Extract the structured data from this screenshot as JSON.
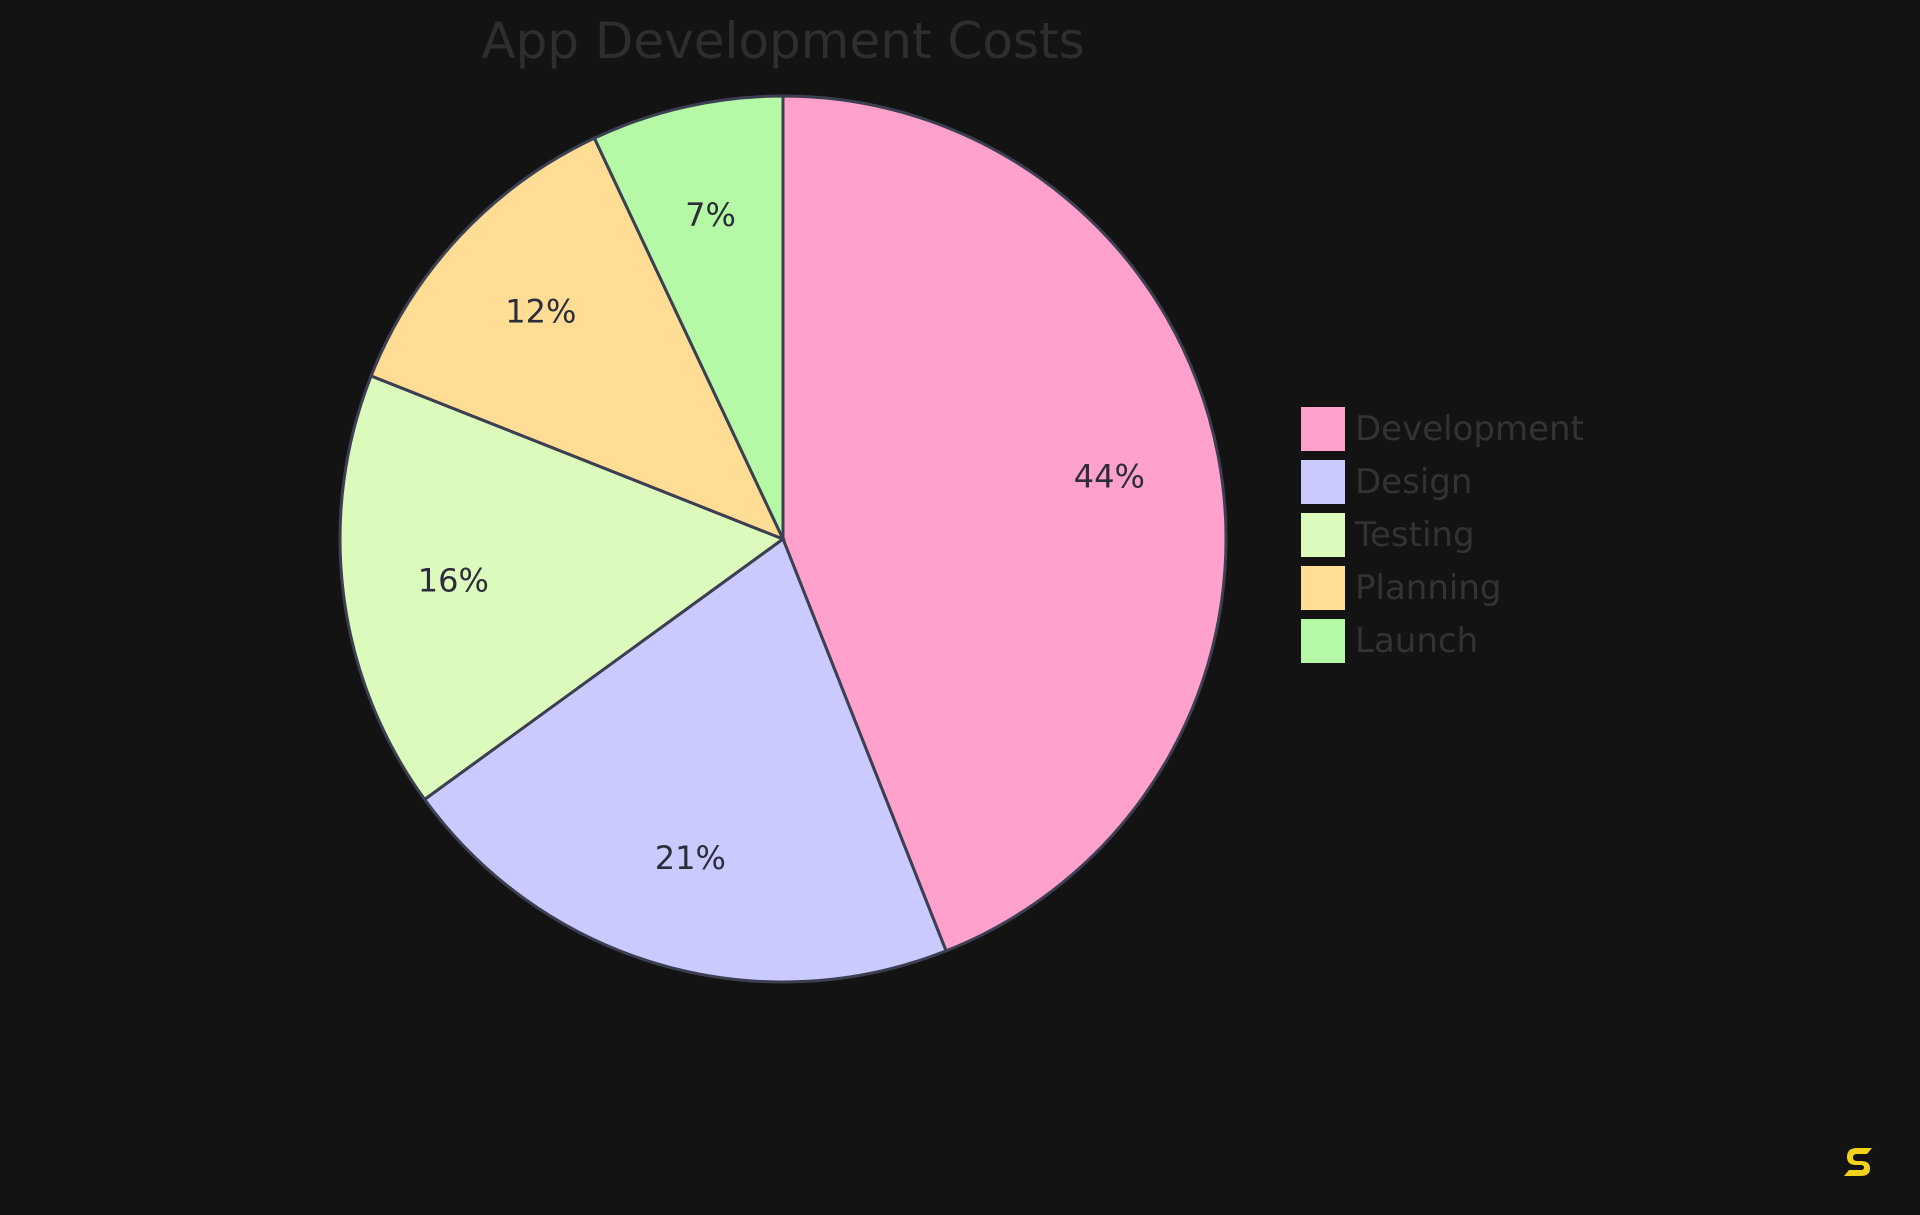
{
  "chart_data": {
    "type": "pie",
    "title": "App Development Costs",
    "legend_position": "right",
    "slices": [
      {
        "label": "Development",
        "value": 44,
        "display": "44%",
        "color": "#ffa1cc"
      },
      {
        "label": "Design",
        "value": 21,
        "display": "21%",
        "color": "#cacafe"
      },
      {
        "label": "Testing",
        "value": 16,
        "display": "16%",
        "color": "#dcfabc"
      },
      {
        "label": "Planning",
        "value": 12,
        "display": "12%",
        "color": "#ffdd95"
      },
      {
        "label": "Launch",
        "value": 7,
        "display": "7%",
        "color": "#b5f9a6"
      }
    ]
  },
  "logo": {
    "icon": "brand-s-logo-icon",
    "color": "#f2d21b"
  }
}
